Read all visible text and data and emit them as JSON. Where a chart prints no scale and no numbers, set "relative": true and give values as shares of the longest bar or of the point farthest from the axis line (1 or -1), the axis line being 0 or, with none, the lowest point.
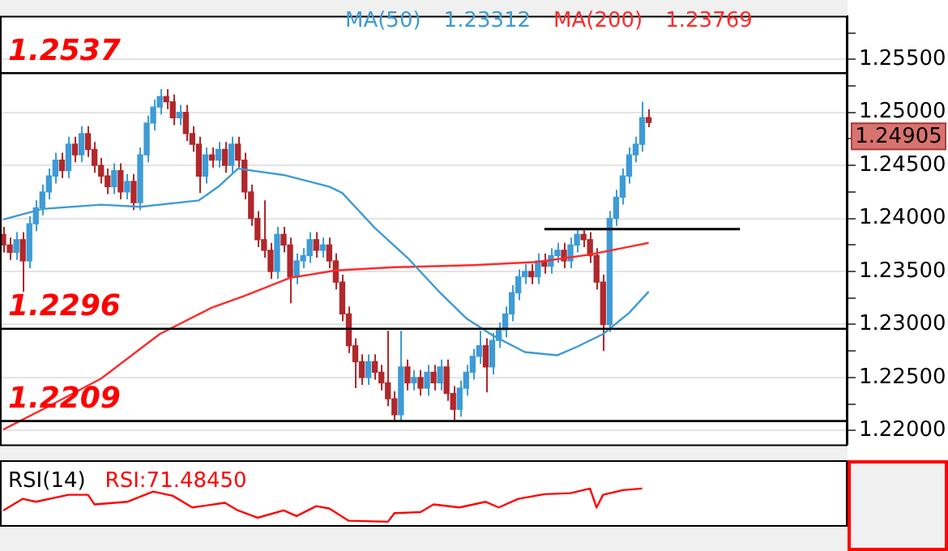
{
  "chart_data": [
    {
      "type": "candlestick",
      "categories": [
        null,
        null,
        null,
        null,
        null,
        null,
        null,
        null,
        null,
        null,
        null,
        null,
        null,
        null,
        null,
        null,
        null,
        null,
        null,
        null,
        null,
        null,
        null,
        null,
        null,
        null,
        null,
        null,
        null,
        null,
        null,
        null,
        null,
        null,
        null,
        null,
        null,
        null,
        null,
        null,
        null,
        null,
        null,
        null,
        null,
        null,
        null,
        null,
        null,
        null,
        null,
        null,
        null,
        null,
        null,
        null,
        null,
        null,
        null,
        null,
        null,
        null,
        null,
        null,
        null,
        null,
        null,
        null,
        null,
        null,
        null,
        null,
        null,
        null,
        null,
        null,
        null,
        null,
        null,
        null,
        null,
        null,
        null,
        null,
        null,
        null,
        null,
        null,
        null,
        null,
        null,
        null,
        null,
        null,
        null,
        null,
        null,
        null,
        null,
        null,
        null,
        null,
        null,
        null,
        null,
        null,
        null,
        null,
        null,
        null,
        null,
        null,
        null,
        null,
        null,
        null,
        null,
        null,
        null,
        null,
        null,
        null,
        null,
        null,
        null,
        null,
        null,
        null,
        null,
        null
      ],
      "ohlc": [
        [
          1.2385,
          1.2392,
          1.2368,
          1.2375
        ],
        [
          1.2375,
          1.2382,
          1.2361,
          1.2368
        ],
        [
          1.2368,
          1.2387,
          1.2361,
          1.238
        ],
        [
          1.238,
          1.2387,
          1.2331,
          1.236
        ],
        [
          1.236,
          1.2402,
          1.2353,
          1.2395
        ],
        [
          1.2395,
          1.2417,
          1.2388,
          1.241
        ],
        [
          1.241,
          1.2432,
          1.2403,
          1.2425
        ],
        [
          1.2425,
          1.2447,
          1.2418,
          1.244
        ],
        [
          1.244,
          1.2462,
          1.2433,
          1.2455
        ],
        [
          1.2455,
          1.2462,
          1.2438,
          1.2445
        ],
        [
          1.2445,
          1.2477,
          1.2438,
          1.247
        ],
        [
          1.247,
          1.2477,
          1.2453,
          1.246
        ],
        [
          1.246,
          1.2487,
          1.2453,
          1.248
        ],
        [
          1.248,
          1.2487,
          1.2458,
          1.2465
        ],
        [
          1.2465,
          1.2472,
          1.2443,
          1.245
        ],
        [
          1.245,
          1.2457,
          1.2433,
          1.244
        ],
        [
          1.244,
          1.2447,
          1.2423,
          1.243
        ],
        [
          1.243,
          1.2452,
          1.2423,
          1.2445
        ],
        [
          1.2445,
          1.2452,
          1.2418,
          1.2425
        ],
        [
          1.2425,
          1.2442,
          1.2418,
          1.2435
        ],
        [
          1.2435,
          1.2442,
          1.2408,
          1.2415
        ],
        [
          1.2415,
          1.2467,
          1.2408,
          1.246
        ],
        [
          1.246,
          1.2497,
          1.2453,
          1.249
        ],
        [
          1.249,
          1.2512,
          1.2483,
          1.2505
        ],
        [
          1.2505,
          1.2522,
          1.2498,
          1.2515
        ],
        [
          1.2515,
          1.2522,
          1.2503,
          1.251
        ],
        [
          1.251,
          1.2517,
          1.2488,
          1.2495
        ],
        [
          1.2495,
          1.2507,
          1.2488,
          1.25
        ],
        [
          1.25,
          1.2507,
          1.2473,
          1.248
        ],
        [
          1.248,
          1.2487,
          1.2463,
          1.247
        ],
        [
          1.247,
          1.2477,
          1.2424,
          1.244
        ],
        [
          1.244,
          1.2467,
          1.2433,
          1.246
        ],
        [
          1.246,
          1.2467,
          1.2448,
          1.2455
        ],
        [
          1.2455,
          1.2472,
          1.2448,
          1.2465
        ],
        [
          1.2465,
          1.2472,
          1.2443,
          1.245
        ],
        [
          1.245,
          1.2477,
          1.2443,
          1.247
        ],
        [
          1.247,
          1.2477,
          1.2448,
          1.2455
        ],
        [
          1.2455,
          1.2462,
          1.2418,
          1.2425
        ],
        [
          1.2425,
          1.2432,
          1.2393,
          1.24
        ],
        [
          1.24,
          1.2407,
          1.2373,
          1.238
        ],
        [
          1.238,
          1.2417,
          1.2363,
          1.237
        ],
        [
          1.237,
          1.2377,
          1.2343,
          1.235
        ],
        [
          1.235,
          1.2392,
          1.2343,
          1.2385
        ],
        [
          1.2385,
          1.2392,
          1.2368,
          1.2375
        ],
        [
          1.2375,
          1.2382,
          1.232,
          1.2345
        ],
        [
          1.2345,
          1.2367,
          1.2338,
          1.236
        ],
        [
          1.236,
          1.2372,
          1.2353,
          1.2365
        ],
        [
          1.2365,
          1.2387,
          1.2358,
          1.238
        ],
        [
          1.238,
          1.2387,
          1.2363,
          1.237
        ],
        [
          1.237,
          1.2382,
          1.2363,
          1.2375
        ],
        [
          1.2375,
          1.2382,
          1.2353,
          1.236
        ],
        [
          1.236,
          1.2367,
          1.2333,
          1.234
        ],
        [
          1.234,
          1.2347,
          1.2303,
          1.231
        ],
        [
          1.231,
          1.2317,
          1.2273,
          1.228
        ],
        [
          1.228,
          1.2287,
          1.224,
          1.2265
        ],
        [
          1.2265,
          1.2272,
          1.2243,
          1.225
        ],
        [
          1.225,
          1.2272,
          1.2243,
          1.2265
        ],
        [
          1.2265,
          1.2272,
          1.2248,
          1.2255
        ],
        [
          1.2255,
          1.2262,
          1.2238,
          1.2245
        ],
        [
          1.2245,
          1.2294,
          1.2223,
          1.223
        ],
        [
          1.223,
          1.2237,
          1.2209,
          1.2215
        ],
        [
          1.2215,
          1.2294,
          1.2209,
          1.226
        ],
        [
          1.226,
          1.2267,
          1.2238,
          1.2245
        ],
        [
          1.2245,
          1.2257,
          1.2238,
          1.225
        ],
        [
          1.225,
          1.2257,
          1.2233,
          1.224
        ],
        [
          1.224,
          1.2262,
          1.2233,
          1.2255
        ],
        [
          1.2255,
          1.2262,
          1.2238,
          1.2245
        ],
        [
          1.2245,
          1.2267,
          1.2238,
          1.226
        ],
        [
          1.226,
          1.2267,
          1.2228,
          1.2235
        ],
        [
          1.2235,
          1.2242,
          1.2209,
          1.222
        ],
        [
          1.222,
          1.2247,
          1.2213,
          1.224
        ],
        [
          1.224,
          1.2262,
          1.2233,
          1.2255
        ],
        [
          1.2255,
          1.2277,
          1.2248,
          1.227
        ],
        [
          1.227,
          1.2294,
          1.2263,
          1.228
        ],
        [
          1.228,
          1.2287,
          1.2236,
          1.226
        ],
        [
          1.226,
          1.2292,
          1.2253,
          1.2285
        ],
        [
          1.2285,
          1.2302,
          1.2278,
          1.2295
        ],
        [
          1.2295,
          1.2317,
          1.2288,
          1.231
        ],
        [
          1.231,
          1.2337,
          1.2303,
          1.233
        ],
        [
          1.233,
          1.2352,
          1.2323,
          1.2345
        ],
        [
          1.2345,
          1.2357,
          1.2338,
          1.235
        ],
        [
          1.235,
          1.2357,
          1.2338,
          1.2345
        ],
        [
          1.2345,
          1.2367,
          1.2338,
          1.236
        ],
        [
          1.236,
          1.2367,
          1.2348,
          1.2355
        ],
        [
          1.2355,
          1.2372,
          1.2348,
          1.2365
        ],
        [
          1.2365,
          1.2377,
          1.2358,
          1.237
        ],
        [
          1.237,
          1.2377,
          1.2353,
          1.236
        ],
        [
          1.236,
          1.2382,
          1.2353,
          1.2375
        ],
        [
          1.2375,
          1.239,
          1.2368,
          1.2385
        ],
        [
          1.2385,
          1.239,
          1.2373,
          1.238
        ],
        [
          1.238,
          1.2387,
          1.2358,
          1.2365
        ],
        [
          1.2365,
          1.2372,
          1.2333,
          1.234
        ],
        [
          1.234,
          1.2347,
          1.2275,
          1.23
        ],
        [
          1.23,
          1.2407,
          1.2293,
          1.24
        ],
        [
          1.24,
          1.2427,
          1.2393,
          1.242
        ],
        [
          1.242,
          1.2447,
          1.2413,
          1.244
        ],
        [
          1.244,
          1.2467,
          1.2433,
          1.246
        ],
        [
          1.246,
          1.2477,
          1.2453,
          1.247
        ],
        [
          1.247,
          1.251,
          1.2463,
          1.2495
        ],
        [
          1.2495,
          1.2503,
          1.2486,
          1.24905
        ],
        null,
        null,
        null,
        null,
        null,
        null,
        null,
        null,
        null,
        null,
        null,
        null,
        null,
        null,
        null,
        null,
        null,
        null,
        null,
        null,
        null,
        null,
        null,
        null,
        null,
        null,
        null,
        null,
        null,
        null
      ],
      "series": [
        {
          "name": "MA(50)",
          "type": "line",
          "color": "#3d9bd6",
          "values": [
            1.2399,
            null,
            null,
            null,
            null,
            null,
            1.2409,
            null,
            null,
            null,
            null,
            null,
            null,
            null,
            null,
            1.2413,
            null,
            null,
            null,
            null,
            null,
            1.2411,
            null,
            null,
            null,
            null,
            null,
            null,
            null,
            null,
            1.2417,
            null,
            null,
            1.243,
            null,
            null,
            1.2447,
            null,
            null,
            null,
            null,
            null,
            null,
            1.2441,
            null,
            null,
            null,
            null,
            null,
            null,
            1.243,
            null,
            1.2424,
            null,
            null,
            null,
            null,
            1.2391,
            null,
            null,
            null,
            null,
            1.2363,
            null,
            null,
            null,
            null,
            1.233,
            null,
            null,
            null,
            1.2306,
            null,
            null,
            null,
            1.229,
            null,
            null,
            null,
            null,
            1.2274,
            null,
            null,
            null,
            null,
            1.2271,
            null,
            null,
            1.2279,
            null,
            null,
            null,
            1.2291,
            null,
            null,
            null,
            1.2311,
            null,
            null,
            1.2331,
            null,
            null,
            null,
            null,
            null,
            null,
            null,
            null,
            null,
            null,
            null,
            null,
            null,
            null,
            null,
            null,
            null,
            null,
            null,
            null,
            null,
            null,
            null,
            null,
            null,
            null,
            null,
            null,
            null,
            null
          ]
        },
        {
          "name": "MA(200)",
          "type": "line",
          "color": "#ff2a2a",
          "values": [
            1.2201,
            null,
            null,
            null,
            null,
            null,
            null,
            1.2223,
            null,
            null,
            null,
            null,
            null,
            null,
            null,
            1.2249,
            null,
            null,
            null,
            null,
            null,
            null,
            null,
            null,
            1.2291,
            null,
            null,
            null,
            null,
            null,
            null,
            null,
            1.2316,
            null,
            null,
            null,
            null,
            1.2327,
            null,
            null,
            null,
            null,
            null,
            null,
            1.2344,
            null,
            null,
            null,
            null,
            null,
            null,
            1.2351,
            null,
            null,
            null,
            null,
            null,
            null,
            null,
            null,
            1.2354,
            null,
            null,
            null,
            null,
            null,
            null,
            null,
            null,
            null,
            null,
            null,
            1.2356,
            null,
            null,
            null,
            null,
            null,
            null,
            null,
            null,
            null,
            1.2359,
            null,
            null,
            null,
            null,
            null,
            null,
            null,
            1.2366,
            null,
            null,
            null,
            null,
            null,
            null,
            null,
            null,
            1.2377,
            null,
            null,
            null,
            null,
            null,
            null,
            null,
            null,
            null,
            null,
            null,
            null,
            null,
            null,
            null,
            null,
            null,
            null,
            null,
            null,
            null,
            null,
            null,
            null,
            null,
            null,
            null,
            null,
            null,
            null
          ]
        },
        {
          "type": "line",
          "color": "#000000",
          "values": [
            null,
            null,
            null,
            null,
            null,
            null,
            null,
            null,
            null,
            null,
            null,
            null,
            null,
            null,
            null,
            null,
            null,
            null,
            null,
            null,
            null,
            null,
            null,
            null,
            null,
            null,
            null,
            null,
            null,
            null,
            null,
            null,
            null,
            null,
            null,
            null,
            null,
            null,
            null,
            null,
            null,
            null,
            null,
            null,
            null,
            null,
            null,
            null,
            null,
            null,
            null,
            null,
            null,
            null,
            null,
            null,
            null,
            null,
            null,
            null,
            null,
            null,
            null,
            null,
            null,
            null,
            null,
            null,
            null,
            null,
            null,
            null,
            null,
            null,
            null,
            null,
            null,
            null,
            null,
            null,
            null,
            null,
            null,
            1.239,
            null,
            null,
            null,
            null,
            null,
            null,
            null,
            null,
            null,
            null,
            null,
            null,
            null,
            null,
            null,
            null,
            null,
            null,
            null,
            null,
            null,
            null,
            null,
            null,
            null,
            null,
            null,
            null,
            null,
            1.239,
            null,
            null,
            null,
            null,
            null,
            null,
            null,
            null,
            null,
            null,
            null,
            null,
            null,
            null,
            null,
            null
          ]
        }
      ],
      "ylim": [
        1.2187,
        1.2591
      ],
      "yticks": [
        {
          "value": 1.22,
          "label": "1.22000"
        },
        {
          "value": 1.2225,
          "label": null
        },
        {
          "value": 1.225,
          "label": "1.22500"
        },
        {
          "value": 1.2275,
          "label": null
        },
        {
          "value": 1.23,
          "label": "1.23000"
        },
        {
          "value": 1.2325,
          "label": null
        },
        {
          "value": 1.235,
          "label": "1.23500"
        },
        {
          "value": 1.2375,
          "label": null
        },
        {
          "value": 1.24,
          "label": "1.24000"
        },
        {
          "value": 1.2425,
          "label": null
        },
        {
          "value": 1.245,
          "label": "1.24500"
        },
        {
          "value": 1.2475,
          "label": null
        },
        {
          "value": 1.25,
          "label": "1.25000"
        },
        {
          "value": 1.2525,
          "label": null
        },
        {
          "value": 1.255,
          "label": "1.25500"
        },
        {
          "value": 1.2575,
          "label": null
        }
      ],
      "ref_lines": [
        {
          "axis": "y",
          "value": 1.2537,
          "label": "1.2537"
        },
        {
          "axis": "y",
          "value": 1.2296,
          "label": "1.2296"
        },
        {
          "axis": "y",
          "value": 1.2209,
          "label": "1.2209"
        }
      ],
      "annotations": [
        "1.23312",
        "1.23769",
        "1.24905"
      ],
      "tick_labels": "y",
      "grid": "y"
    },
    {
      "type": "line",
      "title": "RSI(14)",
      "annotations": [
        "RSI:71.48450"
      ],
      "relative": true,
      "tick_labels": false,
      "categories": [
        null,
        null,
        null,
        null,
        null,
        null,
        null,
        null,
        null,
        null,
        null,
        null,
        null,
        null,
        null,
        null,
        null,
        null,
        null,
        null,
        null,
        null,
        null,
        null,
        null,
        null,
        null,
        null,
        null,
        null,
        null,
        null,
        null,
        null,
        null,
        null,
        null,
        null,
        null,
        null,
        null,
        null,
        null,
        null,
        null,
        null,
        null,
        null,
        null,
        null,
        null,
        null,
        null,
        null,
        null,
        null,
        null,
        null,
        null,
        null,
        null,
        null,
        null,
        null,
        null,
        null,
        null,
        null,
        null,
        null,
        null,
        null,
        null,
        null,
        null,
        null,
        null,
        null,
        null,
        null,
        null,
        null,
        null,
        null,
        null,
        null,
        null,
        null,
        null,
        null,
        null,
        null,
        null,
        null,
        null,
        null,
        null,
        null,
        null,
        null,
        null,
        null,
        null,
        null,
        null,
        null,
        null,
        null,
        null,
        null,
        null,
        null,
        null,
        null,
        null,
        null,
        null,
        null,
        null,
        null,
        null,
        null,
        null,
        null,
        null,
        null,
        null,
        null,
        null,
        null
      ],
      "series": [
        {
          "color": "#ff0000",
          "values": [
            0.34,
            null,
            null,
            0.69,
            null,
            0.6,
            null,
            null,
            null,
            null,
            0.81,
            null,
            null,
            0.81,
            0.52,
            null,
            null,
            null,
            null,
            0.6,
            null,
            null,
            null,
            0.91,
            null,
            null,
            0.78,
            null,
            null,
            0.43,
            null,
            null,
            null,
            null,
            0.57,
            null,
            0.34,
            null,
            null,
            0.12,
            null,
            null,
            null,
            0.34,
            null,
            0.17,
            null,
            null,
            0.47,
            null,
            0.4,
            null,
            null,
            0.03,
            null,
            null,
            null,
            null,
            null,
            0,
            0.26,
            null,
            null,
            null,
            0.29,
            null,
            0.52,
            null,
            null,
            null,
            0.43,
            null,
            null,
            null,
            0.6,
            null,
            0.43,
            null,
            null,
            0.69,
            null,
            null,
            null,
            0.83,
            null,
            null,
            null,
            0.86,
            null,
            null,
            1,
            0.43,
            0.81,
            null,
            null,
            0.95,
            null,
            null,
            1,
            null,
            null,
            null,
            null,
            null,
            null,
            null,
            null,
            null,
            null,
            null,
            null,
            null,
            null,
            null,
            null,
            null,
            null,
            null,
            null,
            null,
            null,
            null,
            null,
            null,
            null,
            null,
            null,
            null,
            null,
            null
          ]
        }
      ]
    }
  ]
}
